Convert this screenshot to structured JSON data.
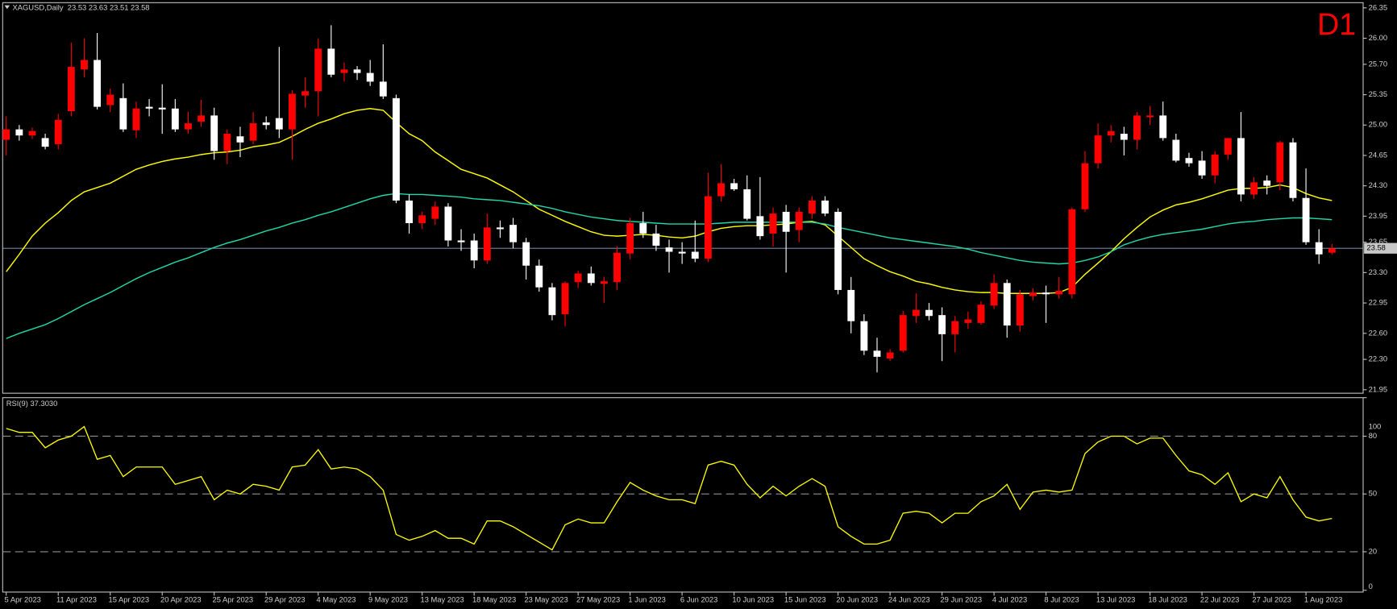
{
  "chart_data": [
    {
      "type": "candlestick",
      "title": "XAGUSD,Daily  23.53 23.63 23.51 23.58",
      "timeframe": "D1",
      "categories": [
        "5 Apr 2023",
        null,
        null,
        null,
        "11 Apr 2023",
        null,
        null,
        null,
        "15 Apr 2023",
        null,
        null,
        null,
        "20 Apr 2023",
        null,
        null,
        null,
        "25 Apr 2023",
        null,
        null,
        null,
        "29 Apr 2023",
        null,
        null,
        null,
        "4 May 2023",
        null,
        null,
        null,
        "9 May 2023",
        null,
        null,
        null,
        "13 May 2023",
        null,
        null,
        null,
        "18 May 2023",
        null,
        null,
        null,
        "23 May 2023",
        null,
        null,
        null,
        "27 May 2023",
        null,
        null,
        null,
        "1 Jun 2023",
        null,
        null,
        null,
        "6 Jun 2023",
        null,
        null,
        null,
        "10 Jun 2023",
        null,
        null,
        null,
        "15 Jun 2023",
        null,
        null,
        null,
        "20 Jun 2023",
        null,
        null,
        null,
        "24 Jun 2023",
        null,
        null,
        null,
        "29 Jun 2023",
        null,
        null,
        null,
        "4 Jul 2023",
        null,
        null,
        null,
        "8 Jul 2023",
        null,
        null,
        null,
        "13 Jul 2023",
        null,
        null,
        null,
        "18 Jul 2023",
        null,
        null,
        null,
        "22 Jul 2023",
        null,
        null,
        null,
        "27 Jul 2023",
        null,
        null,
        null,
        "1 Aug 2023",
        null,
        null
      ],
      "open": [
        24.83,
        24.95,
        24.88,
        24.85,
        24.78,
        25.16,
        25.64,
        25.75,
        25.23,
        25.31,
        24.94,
        25.21,
        25.2,
        25.19,
        24.95,
        25.04,
        25.11,
        24.7,
        24.87,
        24.82,
        25.03,
        25.08,
        24.95,
        25.34,
        25.39,
        25.88,
        25.6,
        25.64,
        25.6,
        25.5,
        25.31,
        24.13,
        23.87,
        23.92,
        24.06,
        23.67,
        23.67,
        23.44,
        23.82,
        23.85,
        23.65,
        23.38,
        23.13,
        22.82,
        23.19,
        23.29,
        23.17,
        23.19,
        23.52,
        23.87,
        23.75,
        23.59,
        23.54,
        23.54,
        23.46,
        24.18,
        24.33,
        24.26,
        23.95,
        23.75,
        24.0,
        23.79,
        23.98,
        24.13,
        24.0,
        23.1,
        22.74,
        22.4,
        22.31,
        22.4,
        22.8,
        22.87,
        22.81,
        22.59,
        22.72,
        22.72,
        22.92,
        23.18,
        22.69,
        23.03,
        23.07,
        23.05,
        23.05,
        24.03,
        24.56,
        24.88,
        24.9,
        24.83,
        25.09,
        25.11,
        24.83,
        24.62,
        24.59,
        24.42,
        24.66,
        24.85,
        24.2,
        24.36,
        24.34,
        24.8,
        24.16,
        23.65,
        23.53
      ],
      "high": [
        25.1,
        25.0,
        24.97,
        24.9,
        25.13,
        25.95,
        26.0,
        26.06,
        25.42,
        25.48,
        25.27,
        25.3,
        25.47,
        25.3,
        25.15,
        25.29,
        25.2,
        24.95,
        24.98,
        25.15,
        25.1,
        25.9,
        25.4,
        25.55,
        26.0,
        26.15,
        25.72,
        25.68,
        25.75,
        25.93,
        25.35,
        24.2,
        24.0,
        24.12,
        24.1,
        23.8,
        23.75,
        23.98,
        23.9,
        23.93,
        23.7,
        23.45,
        23.18,
        23.2,
        23.32,
        23.37,
        23.25,
        23.6,
        23.93,
        24.0,
        23.85,
        23.68,
        23.65,
        23.9,
        24.45,
        24.55,
        24.38,
        24.42,
        24.4,
        24.05,
        24.08,
        24.05,
        24.18,
        24.18,
        24.04,
        23.25,
        22.82,
        22.55,
        22.42,
        22.86,
        23.06,
        22.95,
        22.9,
        22.8,
        22.85,
        22.97,
        23.28,
        23.22,
        23.1,
        23.12,
        23.15,
        23.25,
        24.05,
        24.7,
        25.02,
        25.0,
        24.98,
        25.15,
        25.22,
        25.27,
        24.9,
        24.68,
        24.7,
        24.7,
        24.85,
        25.15,
        24.4,
        24.42,
        24.82,
        24.85,
        24.5,
        23.8,
        23.63
      ],
      "low": [
        24.65,
        24.82,
        24.84,
        24.72,
        24.72,
        25.1,
        25.55,
        25.18,
        25.15,
        24.92,
        24.85,
        25.1,
        24.9,
        24.92,
        24.9,
        24.98,
        24.6,
        24.55,
        24.63,
        24.78,
        24.95,
        24.85,
        24.6,
        25.2,
        25.1,
        25.55,
        25.5,
        25.52,
        25.45,
        25.3,
        24.1,
        23.75,
        23.8,
        23.85,
        23.6,
        23.55,
        23.35,
        23.4,
        23.7,
        23.58,
        23.22,
        23.08,
        22.75,
        22.68,
        23.12,
        23.15,
        22.95,
        23.1,
        23.45,
        23.7,
        23.55,
        23.3,
        23.4,
        23.42,
        23.42,
        24.12,
        24.24,
        23.9,
        23.68,
        23.6,
        23.3,
        23.65,
        23.92,
        23.95,
        23.05,
        22.6,
        22.35,
        22.15,
        22.28,
        22.38,
        22.72,
        22.75,
        22.28,
        22.38,
        22.65,
        22.7,
        22.88,
        22.55,
        22.62,
        22.98,
        22.72,
        23.0,
        23.0,
        24.0,
        24.5,
        24.8,
        24.65,
        24.72,
        25.0,
        24.82,
        24.57,
        24.52,
        24.38,
        24.33,
        24.6,
        24.12,
        24.15,
        24.2,
        24.25,
        24.12,
        23.62,
        23.4,
        23.51
      ],
      "close": [
        24.95,
        24.88,
        24.93,
        24.75,
        25.06,
        25.67,
        25.75,
        25.21,
        25.35,
        24.95,
        25.19,
        25.19,
        25.18,
        24.95,
        25.02,
        25.11,
        24.7,
        24.9,
        24.8,
        25.02,
        25.0,
        24.95,
        25.36,
        25.39,
        25.88,
        25.58,
        25.64,
        25.6,
        25.5,
        25.33,
        24.13,
        23.87,
        23.96,
        24.06,
        23.67,
        23.65,
        23.44,
        23.82,
        23.8,
        23.65,
        23.38,
        23.13,
        22.81,
        23.18,
        23.29,
        23.18,
        23.2,
        23.53,
        23.87,
        23.75,
        23.61,
        23.54,
        23.52,
        23.46,
        24.18,
        24.33,
        24.26,
        23.92,
        23.72,
        23.98,
        23.77,
        24.0,
        24.13,
        23.98,
        23.1,
        22.74,
        22.4,
        22.33,
        22.38,
        22.81,
        22.87,
        22.8,
        22.59,
        22.74,
        22.76,
        22.93,
        23.18,
        22.69,
        23.05,
        23.07,
        23.05,
        23.09,
        24.03,
        24.56,
        24.88,
        24.93,
        24.83,
        25.11,
        25.11,
        24.85,
        24.59,
        24.56,
        24.42,
        24.66,
        24.85,
        24.2,
        24.34,
        24.3,
        24.8,
        24.16,
        23.65,
        23.51,
        23.58
      ],
      "up_color": "#ff0000",
      "down_color": "#ffffff",
      "overlays": [
        {
          "color": "#ffff00",
          "values": [
            23.31,
            23.51,
            23.72,
            23.87,
            23.99,
            24.13,
            24.23,
            24.28,
            24.33,
            24.41,
            24.49,
            24.54,
            24.58,
            24.61,
            24.63,
            24.66,
            24.68,
            24.69,
            24.71,
            24.75,
            24.77,
            24.8,
            24.87,
            24.95,
            25.02,
            25.07,
            25.13,
            25.17,
            25.19,
            25.17,
            25.03,
            24.9,
            24.82,
            24.69,
            24.59,
            24.49,
            24.44,
            24.39,
            24.31,
            24.23,
            24.13,
            24.03,
            23.96,
            23.89,
            23.83,
            23.77,
            23.73,
            23.72,
            23.73,
            23.74,
            23.73,
            23.71,
            23.7,
            23.72,
            23.77,
            23.81,
            23.83,
            23.84,
            23.84,
            23.85,
            23.86,
            23.88,
            23.89,
            23.85,
            23.72,
            23.59,
            23.46,
            23.38,
            23.31,
            23.26,
            23.2,
            23.17,
            23.13,
            23.1,
            23.08,
            23.07,
            23.07,
            23.06,
            23.06,
            23.06,
            23.06,
            23.07,
            23.13,
            23.28,
            23.41,
            23.54,
            23.69,
            23.82,
            23.94,
            24.02,
            24.08,
            24.11,
            24.15,
            24.2,
            24.25,
            24.27,
            24.27,
            24.28,
            24.31,
            24.28,
            24.21,
            24.16,
            24.13
          ]
        },
        {
          "color": "#20d8a8",
          "values": [
            22.54,
            22.6,
            22.65,
            22.7,
            22.77,
            22.85,
            22.93,
            23.0,
            23.07,
            23.15,
            23.23,
            23.3,
            23.36,
            23.42,
            23.47,
            23.53,
            23.59,
            23.64,
            23.68,
            23.73,
            23.78,
            23.82,
            23.87,
            23.91,
            23.96,
            24.0,
            24.05,
            24.1,
            24.15,
            24.19,
            24.21,
            24.2,
            24.2,
            24.19,
            24.18,
            24.17,
            24.15,
            24.14,
            24.13,
            24.11,
            24.09,
            24.07,
            24.04,
            24.0,
            23.97,
            23.94,
            23.92,
            23.9,
            23.89,
            23.88,
            23.87,
            23.86,
            23.86,
            23.86,
            23.86,
            23.87,
            23.88,
            23.88,
            23.88,
            23.88,
            23.88,
            23.88,
            23.88,
            23.86,
            23.82,
            23.79,
            23.76,
            23.73,
            23.7,
            23.68,
            23.66,
            23.64,
            23.62,
            23.6,
            23.57,
            23.53,
            23.5,
            23.47,
            23.44,
            23.42,
            23.41,
            23.4,
            23.41,
            23.44,
            23.48,
            23.54,
            23.62,
            23.67,
            23.71,
            23.74,
            23.76,
            23.78,
            23.8,
            23.83,
            23.86,
            23.88,
            23.89,
            23.91,
            23.92,
            23.93,
            23.93,
            23.92,
            23.91
          ]
        }
      ],
      "last_price": 23.58,
      "ylim": [
        21.91,
        26.41
      ],
      "yticks": [
        26.35,
        {
          "value": 26,
          "label": "26.00"
        },
        {
          "value": 25.7,
          "label": "25.70"
        },
        25.35,
        {
          "value": 25,
          "label": "25.00"
        },
        24.65,
        {
          "value": 24.3,
          "label": "24.30"
        },
        23.95,
        23.65,
        {
          "value": 23.3,
          "label": "23.30"
        },
        22.95,
        {
          "value": 22.6,
          "label": "22.60"
        },
        {
          "value": 22.3,
          "label": "22.30"
        },
        21.95
      ]
    },
    {
      "type": "line",
      "title": "RSI(9) 37.3030",
      "color": "#ffff00",
      "values": [
        84,
        82,
        82,
        74,
        78,
        80,
        85,
        68,
        70,
        59,
        64,
        64,
        64,
        55,
        57,
        59,
        47,
        52,
        50,
        55,
        54,
        52,
        64,
        65,
        73,
        63,
        64,
        63,
        59,
        52,
        29,
        26,
        28,
        31,
        27,
        27,
        24,
        36,
        36,
        33,
        29,
        25,
        21,
        34,
        37,
        35,
        35,
        46,
        56,
        52,
        49,
        47,
        47,
        45,
        65,
        67,
        65,
        55,
        48,
        54,
        49,
        54,
        58,
        54,
        33,
        28,
        24,
        24,
        26,
        40,
        41,
        40,
        35,
        40,
        40,
        46,
        49,
        55,
        42,
        51,
        52,
        51,
        52,
        71,
        77,
        80,
        80,
        76,
        79,
        79,
        70,
        62,
        60,
        55,
        61,
        46,
        50,
        48,
        59,
        47,
        38,
        36,
        37.303
      ],
      "ylim": [
        0,
        100
      ],
      "yticks": [
        100,
        80,
        50,
        20,
        0
      ],
      "levels": [
        80,
        50,
        20
      ]
    }
  ]
}
